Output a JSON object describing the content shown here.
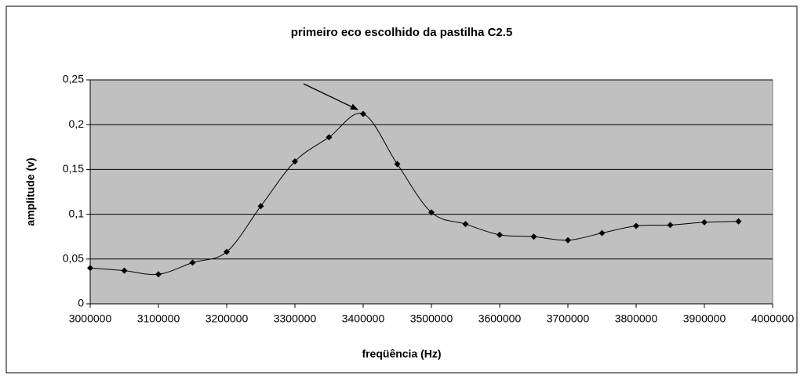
{
  "chart_data": {
    "type": "line",
    "title": "primeiro eco escolhido da pastilha C2.5",
    "x_label": "freqüência (Hz)",
    "y_label": "amplitude (v)",
    "x": [
      3000000,
      3050000,
      3100000,
      3150000,
      3200000,
      3250000,
      3300000,
      3350000,
      3400000,
      3450000,
      3500000,
      3550000,
      3600000,
      3650000,
      3700000,
      3750000,
      3800000,
      3850000,
      3900000,
      3950000
    ],
    "series": [
      {
        "color": "#000000",
        "values": [
          0.04,
          0.037,
          0.033,
          0.046,
          0.058,
          0.109,
          0.159,
          0.186,
          0.212,
          0.156,
          0.102,
          0.089,
          0.077,
          0.075,
          0.071,
          0.079,
          0.087,
          0.088,
          0.091,
          0.092
        ]
      }
    ],
    "xlim": [
      3000000,
      4000000
    ],
    "xticks": [
      3000000,
      3100000,
      3200000,
      3300000,
      3400000,
      3500000,
      3600000,
      3700000,
      3800000,
      3900000,
      4000000
    ],
    "ylim": [
      0,
      0.25
    ],
    "yticks": [
      0,
      {
        "value": 0.05,
        "label": "0,05"
      },
      {
        "value": 0.1,
        "label": "0,1"
      },
      {
        "value": 0.15,
        "label": "0,15"
      },
      {
        "value": 0.2,
        "label": "0,2"
      },
      {
        "value": 0.25,
        "label": "0,25"
      }
    ],
    "grid": true,
    "plot_background": "#c0c0c0"
  }
}
